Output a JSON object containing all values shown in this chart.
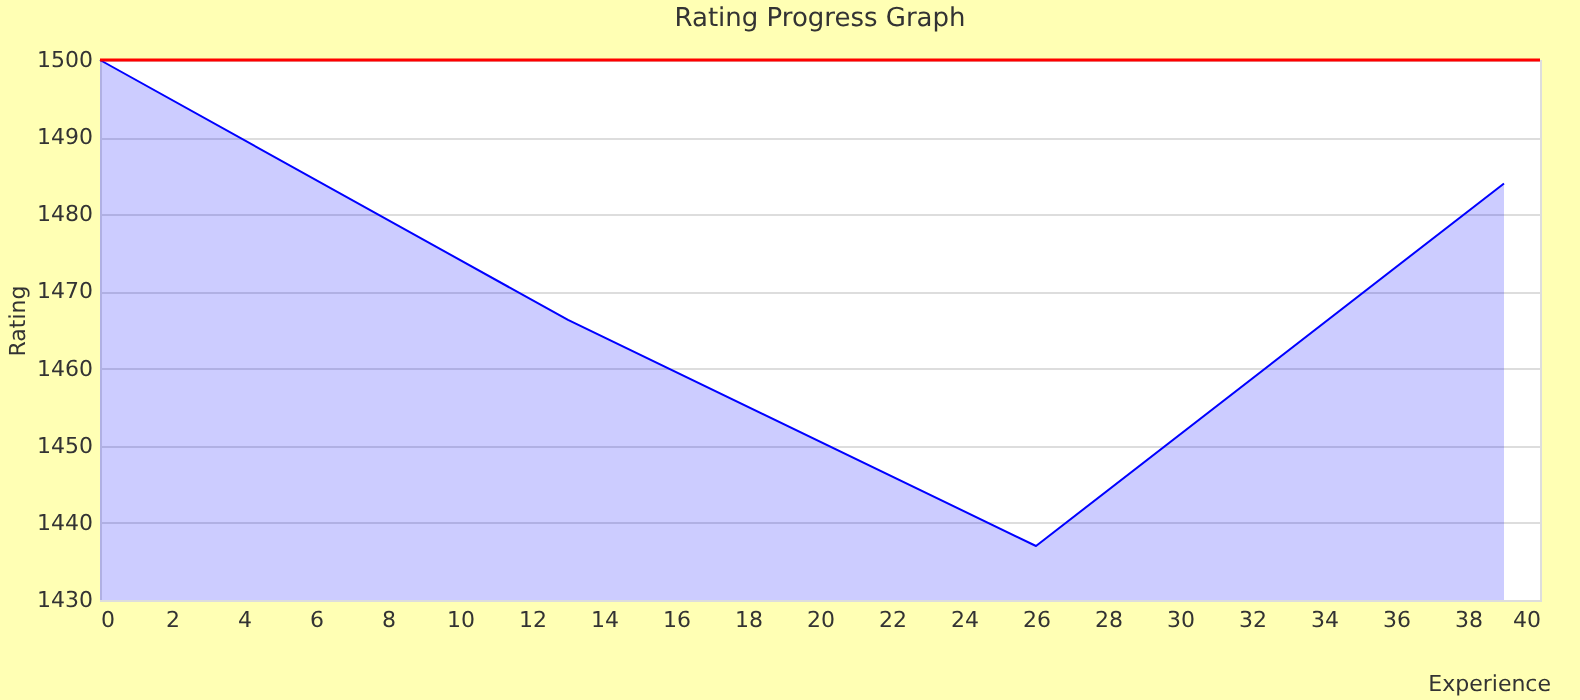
{
  "chart_data": {
    "type": "area",
    "title": "Rating Progress Graph",
    "xlabel": "Experience",
    "ylabel": "Rating",
    "x": [
      0,
      13,
      26,
      39
    ],
    "series": [
      {
        "color": "#0000ff",
        "values": [
          1500,
          1466.3,
          1437,
          1484
        ]
      }
    ],
    "xlim": [
      0,
      40
    ],
    "xticks": [
      0,
      2,
      4,
      6,
      8,
      10,
      12,
      14,
      16,
      18,
      20,
      22,
      24,
      26,
      28,
      30,
      32,
      34,
      36,
      38,
      40
    ],
    "ylim": [
      1430,
      1500
    ],
    "yticks": [
      1430,
      1440,
      1450,
      1460,
      1470,
      1480,
      1490,
      1500
    ],
    "ref_lines": [
      {
        "axis": "y",
        "value": 1500,
        "color": "#ff0000"
      }
    ],
    "grid": "y",
    "marker": "none",
    "line_style": "solid"
  }
}
